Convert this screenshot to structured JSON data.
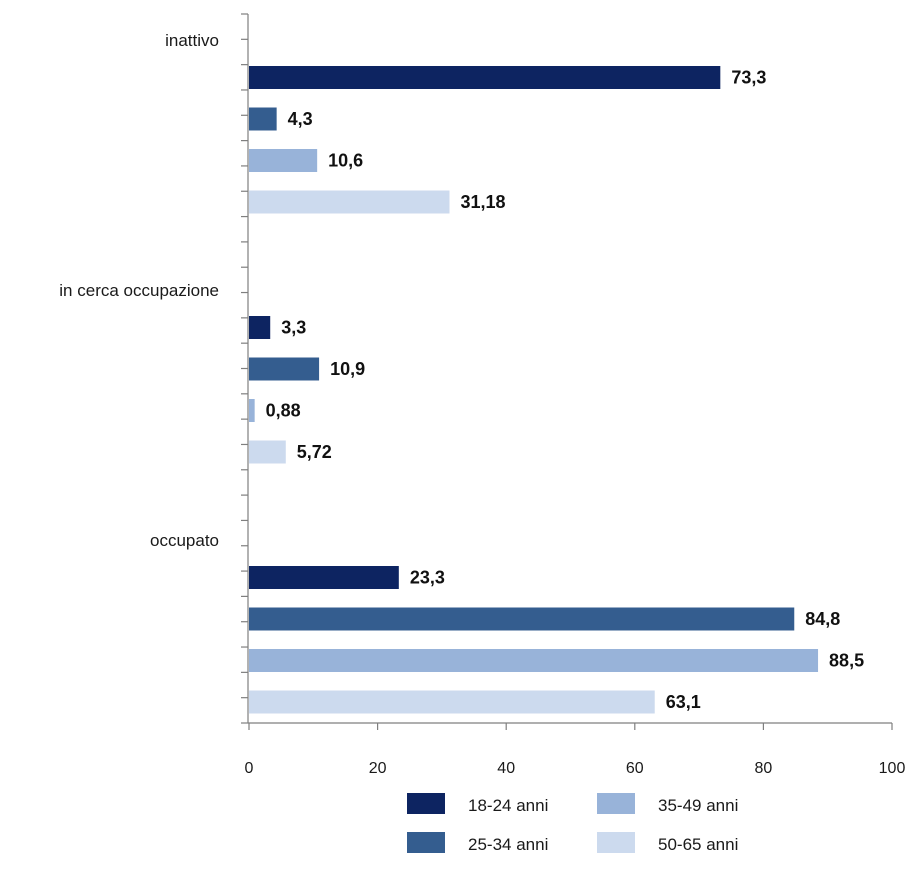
{
  "chart_data": {
    "type": "bar",
    "orientation": "horizontal",
    "categories": [
      "inattivo",
      "in cerca occupazione",
      "occupato"
    ],
    "series": [
      {
        "name": "18-24 anni",
        "color": "#0d2461",
        "values": [
          73.3,
          3.3,
          23.3
        ],
        "labels": [
          "73,3",
          "3,3",
          "23,3"
        ]
      },
      {
        "name": "25-34 anni",
        "color": "#345d8f",
        "values": [
          4.3,
          10.9,
          84.8
        ],
        "labels": [
          "4,3",
          "10,9",
          "84,8"
        ]
      },
      {
        "name": "35-49 anni",
        "color": "#98b3d9",
        "values": [
          10.6,
          0.88,
          88.5
        ],
        "labels": [
          "10,6",
          "0,88",
          "88,5"
        ]
      },
      {
        "name": "50-65 anni",
        "color": "#ccdaee",
        "values": [
          31.18,
          5.72,
          63.1
        ],
        "labels": [
          "31,18",
          "5,72",
          "63,1"
        ]
      }
    ],
    "xlim": [
      0,
      100
    ],
    "xticks": [
      "0",
      "20",
      "40",
      "60",
      "80",
      "100"
    ],
    "grid": false,
    "legend": "bottom"
  }
}
